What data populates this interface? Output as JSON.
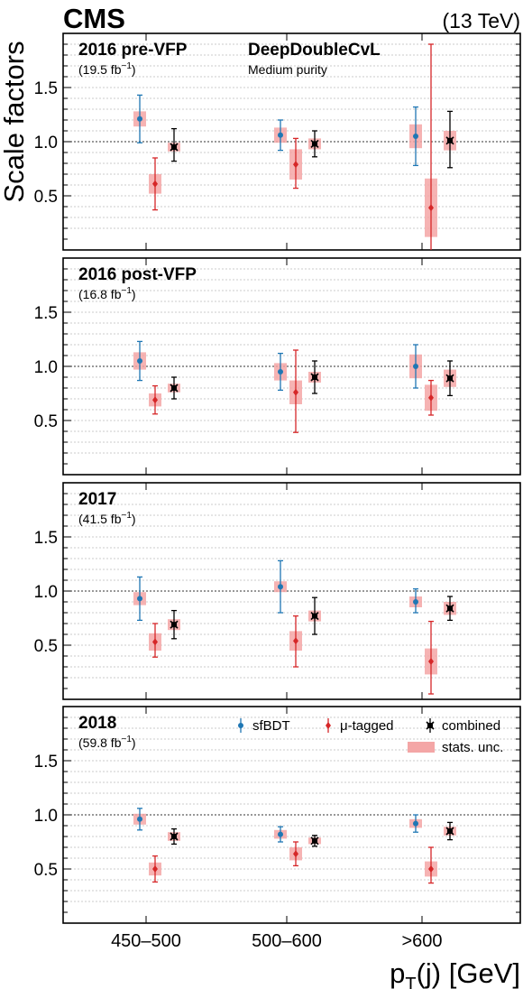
{
  "header": {
    "experiment": "CMS",
    "energy": "(13 TeV)"
  },
  "tagger": {
    "name": "DeepDoubleCvL",
    "purity": "Medium purity"
  },
  "axes": {
    "ylabel": "Scale factors",
    "xlabel": "p_T(j) [GeV]",
    "xlabel_main": "p",
    "xlabel_sub": "T",
    "xlabel_rest": "(j) [GeV]"
  },
  "legend": {
    "sfbdt": "sfBDT",
    "mutagged": "μ-tagged",
    "combined": "combined",
    "stats": "stats. unc."
  },
  "colors": {
    "sfbdt": "#1f77b4",
    "mutagged": "#d62728",
    "combined": "#000000",
    "stats": "#f4a6a6"
  },
  "chart_data": {
    "type": "scatter",
    "categories": [
      "450–500",
      "500–600",
      ">600"
    ],
    "ylim": [
      0,
      2.0
    ],
    "yticks": [
      "0.5",
      "1.0",
      "1.5"
    ],
    "reference_line": 1.0,
    "grid": "horizontal dotted",
    "legend_placement": "top-right of bottom panel",
    "panels": [
      {
        "title": "2016 pre-VFP",
        "lumi": "(19.5 fb",
        "lumi_exp": "−1",
        "lumi_close": ")",
        "series": [
          {
            "name": "sfBDT",
            "values": [
              1.21,
              1.06,
              1.05
            ],
            "err_lo": [
              0.22,
              0.14,
              0.27
            ],
            "err_hi": [
              0.22,
              0.14,
              0.27
            ],
            "stat": [
              0.07,
              0.07,
              0.11
            ]
          },
          {
            "name": "μ-tagged",
            "values": [
              0.61,
              0.79,
              0.39
            ],
            "err_lo": [
              0.24,
              0.22,
              0.39
            ],
            "err_hi": [
              0.24,
              0.24,
              1.51
            ],
            "stat": [
              0.09,
              0.14,
              0.27
            ]
          },
          {
            "name": "combined",
            "values": [
              0.95,
              0.98,
              1.01
            ],
            "err_lo": [
              0.13,
              0.12,
              0.25
            ],
            "err_hi": [
              0.17,
              0.12,
              0.27
            ],
            "stat": [
              0.04,
              0.05,
              0.09
            ]
          }
        ]
      },
      {
        "title": "2016 post-VFP",
        "lumi": "(16.8 fb",
        "lumi_exp": "−1",
        "lumi_close": ")",
        "series": [
          {
            "name": "sfBDT",
            "values": [
              1.05,
              0.95,
              1.0
            ],
            "err_lo": [
              0.18,
              0.17,
              0.2
            ],
            "err_hi": [
              0.18,
              0.17,
              0.2
            ],
            "stat": [
              0.08,
              0.08,
              0.11
            ]
          },
          {
            "name": "μ-tagged",
            "values": [
              0.69,
              0.76,
              0.71
            ],
            "err_lo": [
              0.13,
              0.37,
              0.16
            ],
            "err_hi": [
              0.13,
              0.39,
              0.16
            ],
            "stat": [
              0.06,
              0.11,
              0.12
            ]
          },
          {
            "name": "combined",
            "values": [
              0.8,
              0.9,
              0.89
            ],
            "err_lo": [
              0.1,
              0.15,
              0.16
            ],
            "err_hi": [
              0.1,
              0.15,
              0.16
            ],
            "stat": [
              0.04,
              0.05,
              0.08
            ]
          }
        ]
      },
      {
        "title": "2017",
        "lumi": "(41.5 fb",
        "lumi_exp": "−1",
        "lumi_close": ")",
        "series": [
          {
            "name": "sfBDT",
            "values": [
              0.93,
              1.04,
              0.9
            ],
            "err_lo": [
              0.2,
              0.24,
              0.1
            ],
            "err_hi": [
              0.2,
              0.24,
              0.12
            ],
            "stat": [
              0.06,
              0.05,
              0.05
            ]
          },
          {
            "name": "μ-tagged",
            "values": [
              0.53,
              0.54,
              0.35
            ],
            "err_lo": [
              0.14,
              0.24,
              0.3
            ],
            "err_hi": [
              0.17,
              0.23,
              0.37
            ],
            "stat": [
              0.08,
              0.09,
              0.12
            ]
          },
          {
            "name": "combined",
            "values": [
              0.69,
              0.77,
              0.84
            ],
            "err_lo": [
              0.13,
              0.17,
              0.11
            ],
            "err_hi": [
              0.13,
              0.17,
              0.11
            ],
            "stat": [
              0.05,
              0.05,
              0.06
            ]
          }
        ]
      },
      {
        "title": "2018",
        "lumi": "(59.8 fb",
        "lumi_exp": "−1",
        "lumi_close": ")",
        "series": [
          {
            "name": "sfBDT",
            "values": [
              0.96,
              0.82,
              0.92
            ],
            "err_lo": [
              0.1,
              0.07,
              0.08
            ],
            "err_hi": [
              0.1,
              0.07,
              0.08
            ],
            "stat": [
              0.05,
              0.04,
              0.04
            ]
          },
          {
            "name": "μ-tagged",
            "values": [
              0.5,
              0.64,
              0.5
            ],
            "err_lo": [
              0.12,
              0.11,
              0.13
            ],
            "err_hi": [
              0.12,
              0.11,
              0.2
            ],
            "stat": [
              0.06,
              0.06,
              0.07
            ]
          },
          {
            "name": "combined",
            "values": [
              0.8,
              0.76,
              0.85
            ],
            "err_lo": [
              0.07,
              0.05,
              0.08
            ],
            "err_hi": [
              0.07,
              0.05,
              0.08
            ],
            "stat": [
              0.04,
              0.03,
              0.04
            ]
          }
        ]
      }
    ]
  }
}
